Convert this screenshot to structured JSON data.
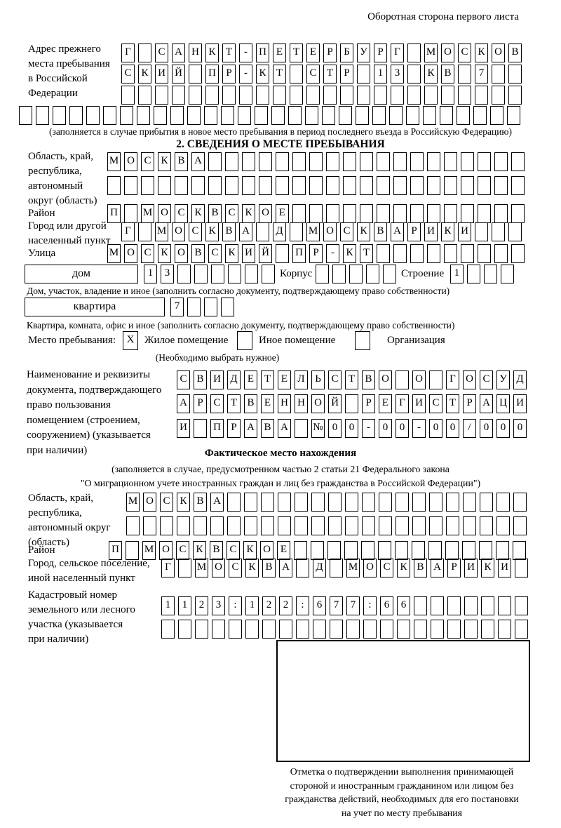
{
  "page": {
    "header_note": "Оборотная сторона первого листа"
  },
  "section1": {
    "label": "Адрес прежнего\nместа пребывания\nв Российской\nФедерации",
    "row1": {
      "len": 24,
      "text": "Г САНКТ-ПЕТЕРБУРГ МОСКОВ"
    },
    "row2": {
      "len": 24,
      "text": "СКИЙ ПР-КТ СТР 13 КВ 7"
    },
    "row3": {
      "len": 24,
      "text": ""
    },
    "row4": {
      "len": 30,
      "text": ""
    },
    "caption": "(заполняется в случае прибытия в новое место пребывания в период последнего въезда в Российскую Федерацию)"
  },
  "section2": {
    "title": "2. СВЕДЕНИЯ О МЕСТЕ ПРЕБЫВАНИЯ",
    "oblast": {
      "label": "Область, край,\nреспублика,\nавтономный\nокруг (область)",
      "row1": {
        "len": 25,
        "text": "МОСКВА"
      },
      "row2": {
        "len": 25,
        "text": ""
      }
    },
    "raion": {
      "label": "Район",
      "row": {
        "len": 25,
        "text": "П МОСКВСКОЕ"
      }
    },
    "gorod": {
      "label": "Город или другой\nнаселенный пункт",
      "row": {
        "len": 24,
        "text": "Г МОСКВА Д МОСКВАРИКИ"
      }
    },
    "ulitsa": {
      "label": "Улица",
      "row": {
        "len": 25,
        "text": "МОСКОВСКИЙ ПР-КТ"
      }
    },
    "dom": {
      "box_label": "дом",
      "cells": {
        "len": 8,
        "text": "13"
      },
      "korpus_label": "Корпус",
      "korpus_cells": {
        "len": 5,
        "text": ""
      },
      "stroenie_label": "Строение",
      "stroenie_cells": {
        "len": 4,
        "text": "1"
      },
      "caption": "Дом, участок, владение и иное (заполнить согласно документу, подтверждающему право собственности)"
    },
    "kvartira": {
      "box_label": "квартира",
      "cells": {
        "len": 4,
        "text": "7"
      },
      "caption": "Квартира, комната, офис и иное (заполнить согласно документу, подтверждающему право собственности)"
    },
    "mesto": {
      "label": "Место пребывания:",
      "opt1_checked": "X",
      "opt1": "Жилое помещение",
      "opt2_checked": "",
      "opt2": "Иное помещение",
      "opt3_checked": "",
      "opt3": "Организация",
      "note": "(Необходимо выбрать нужное)"
    },
    "document": {
      "label": "Наименование и реквизиты\nдокумента, подтверждающего\nправо пользования\nпомещением (строением,\nсооружением) (указывается\nпри наличии)",
      "row1": {
        "len": 21,
        "text": "СВИДЕТЕЛЬСТВО О ГОСУД"
      },
      "row2": {
        "len": 21,
        "text": "АРСТВЕННОЙ РЕГИСТРАЦИ"
      },
      "row3": {
        "len": 21,
        "text": "И ПРАВА №00-00-00/000"
      }
    }
  },
  "fact": {
    "title": "Фактическое место нахождения",
    "caption1": "(заполняется в случае, предусмотренном частью 2 статьи 21 Федерального закона",
    "caption2": "\"О миграционном учете иностранных граждан и лиц без гражданства в Российской Федерации\")",
    "oblast": {
      "label": "Область, край,\nреспублика,\nавтономный округ\n(область)",
      "row1": {
        "len": 24,
        "text": "МОСКВА"
      },
      "row2": {
        "len": 24,
        "text": ""
      }
    },
    "raion": {
      "label": "Район",
      "row": {
        "len": 25,
        "text": "П МОСКВСКОЕ"
      }
    },
    "gorod": {
      "label": "Город, сельское поселение,\nиной населенный пункт",
      "row": {
        "len": 22,
        "text": "Г МОСКВА Д МОСКВАРИКИ"
      }
    },
    "kadastr": {
      "label": "Кадастровый номер\nземельного или лесного\nучастка (указывается\nпри наличии)",
      "row1": {
        "len": 22,
        "text": "1123:122:677:66"
      },
      "row2": {
        "len": 22,
        "text": ""
      }
    },
    "stamp_caption": "Отметка о подтверждении выполнения принимающей\nстороной и иностранным гражданином или лицом без\nгражданства действий, необходимых для его постановки\nна учет по месту пребывания"
  }
}
